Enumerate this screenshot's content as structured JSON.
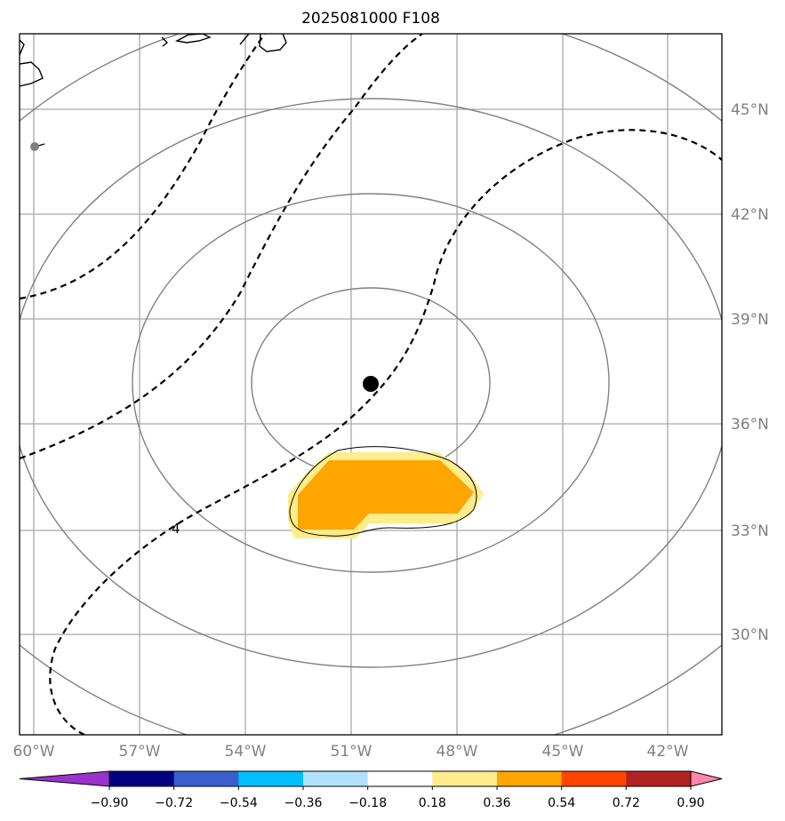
{
  "chart_data": {
    "type": "contour-map",
    "title": "2025081000 F108",
    "projection": "azimuthal map centered near 37°N, 50°W",
    "lat_ticks": [
      "30°N",
      "33°N",
      "36°N",
      "39°N",
      "42°N",
      "45°N"
    ],
    "lon_ticks": [
      "60°W",
      "57°W",
      "54°W",
      "51°W",
      "48°W",
      "45°W",
      "42°W"
    ],
    "storm_center": {
      "lat": 37.2,
      "lon": -50.3
    },
    "range_rings": 4,
    "contour_label": "4",
    "colorbar": {
      "ticks": [
        "−0.90",
        "−0.72",
        "−0.54",
        "−0.36",
        "−0.18",
        "0.18",
        "0.36",
        "0.54",
        "0.72",
        "0.90"
      ],
      "colors": [
        "#9933cc",
        "#000080",
        "#3a5fcd",
        "#00bfff",
        "#b0e2ff",
        "#ffffff",
        "#ffec8b",
        "#ffa500",
        "#ff4500",
        "#b22222",
        "#ff88aa"
      ],
      "extend": "both"
    },
    "shaded_regions": [
      {
        "range": "0.18–0.36",
        "color": "#ffec8b"
      },
      {
        "range": "0.36–0.54",
        "color": "#ffa500"
      }
    ],
    "gridlines": true
  }
}
